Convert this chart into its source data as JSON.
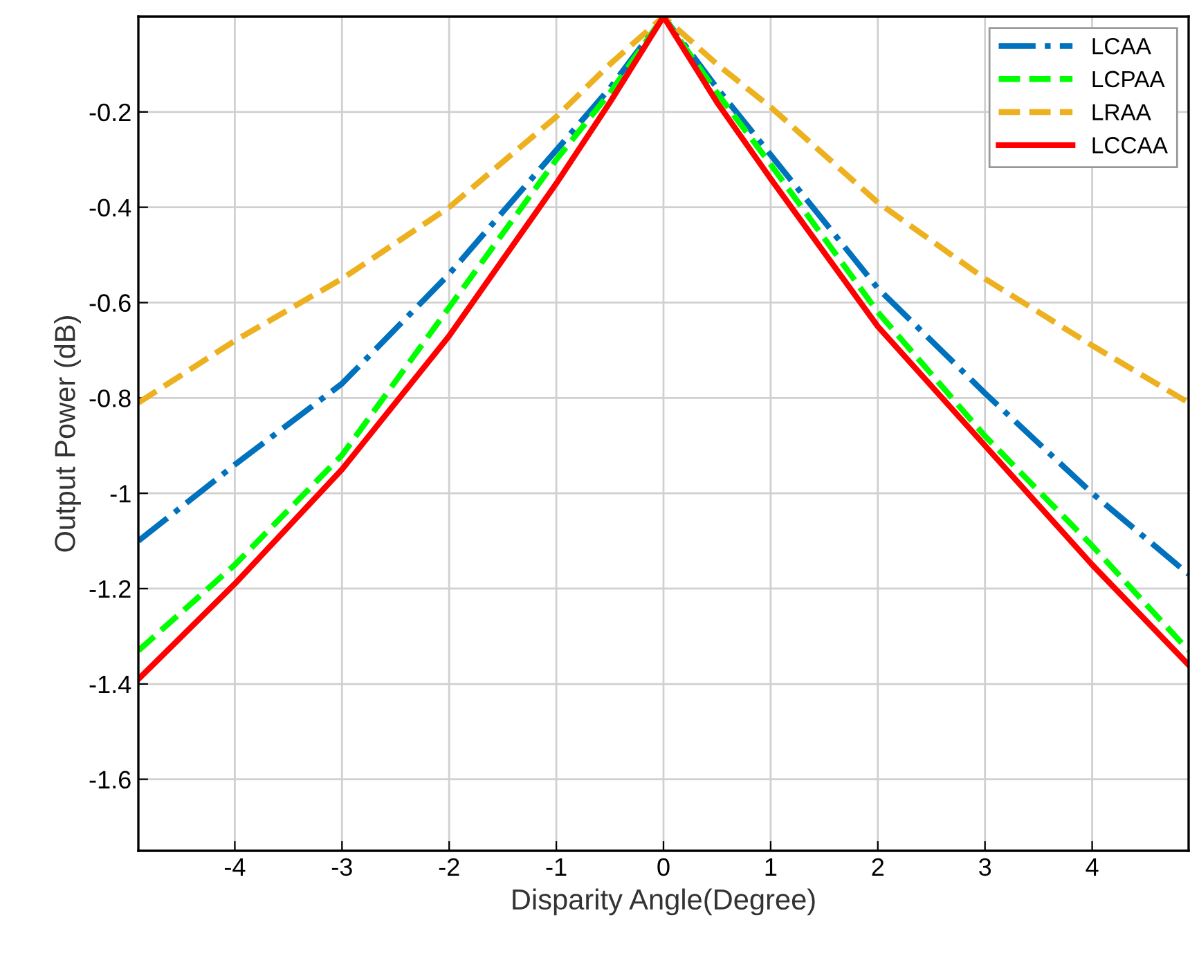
{
  "chart_data": {
    "type": "line",
    "xlabel": "Disparity Angle(Degree)",
    "ylabel": "Output Power (dB)",
    "x": [
      -4.9,
      -4,
      -3,
      -2,
      -1,
      -0.5,
      0,
      0.5,
      1,
      2,
      3,
      4,
      4.9
    ],
    "series": [
      {
        "name": "LCAA",
        "color": "#0072bd",
        "line_style": "dashdot",
        "values": [
          -1.1,
          -0.94,
          -0.77,
          -0.54,
          -0.28,
          -0.15,
          0,
          -0.15,
          -0.29,
          -0.57,
          -0.79,
          -1.0,
          -1.17
        ]
      },
      {
        "name": "LCPAA",
        "color": "#00ff00",
        "line_style": "dashed",
        "values": [
          -1.33,
          -1.15,
          -0.92,
          -0.61,
          -0.3,
          -0.16,
          0,
          -0.16,
          -0.31,
          -0.62,
          -0.88,
          -1.11,
          -1.33
        ]
      },
      {
        "name": "LRAA",
        "color": "#edb120",
        "line_style": "dashed",
        "values": [
          -0.81,
          -0.68,
          -0.55,
          -0.4,
          -0.21,
          -0.1,
          0,
          -0.1,
          -0.19,
          -0.39,
          -0.55,
          -0.69,
          -0.81
        ]
      },
      {
        "name": "LCCAA",
        "color": "#ff0000",
        "line_style": "solid",
        "values": [
          -1.39,
          -1.19,
          -0.95,
          -0.67,
          -0.35,
          -0.18,
          0,
          -0.18,
          -0.34,
          -0.65,
          -0.9,
          -1.15,
          -1.36
        ]
      }
    ],
    "xlim": [
      -4.9,
      4.9
    ],
    "ylim": [
      -1.75,
      0
    ],
    "xticks": [
      -4,
      -3,
      -2,
      -1,
      0,
      1,
      2,
      3,
      4
    ],
    "yticks": [
      -1.6,
      -1.4,
      -1.2,
      -1,
      -0.8,
      -0.6,
      -0.4,
      -0.2
    ],
    "grid": true,
    "legend": "top right",
    "marker": "none"
  }
}
